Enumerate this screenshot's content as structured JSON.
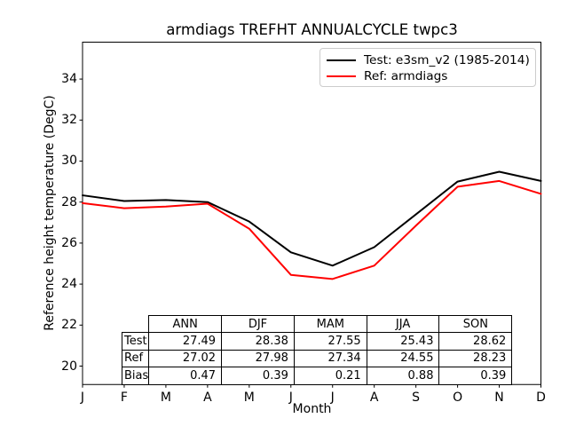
{
  "title": "armdiags TREFHT ANNUALCYCLE twpc3",
  "chart_data": {
    "type": "line",
    "title": "armdiags TREFHT ANNUALCYCLE twpc3",
    "xlabel": "Month",
    "ylabel": "Reference height temperature (DegC)",
    "x": [
      "J",
      "F",
      "M",
      "A",
      "M",
      "J",
      "J",
      "A",
      "S",
      "O",
      "N",
      "D"
    ],
    "series": [
      {
        "name": "Test: e3sm_v2 (1985-2014)",
        "color": "#000000",
        "values": [
          28.33,
          28.05,
          28.1,
          28.0,
          27.05,
          25.55,
          24.9,
          25.8,
          27.4,
          29.0,
          29.48,
          29.03
        ]
      },
      {
        "name": "Ref: armdiags",
        "color": "#ff0000",
        "values": [
          27.95,
          27.7,
          27.78,
          27.92,
          26.7,
          24.45,
          24.25,
          24.9,
          26.85,
          28.75,
          29.03,
          28.4
        ]
      }
    ],
    "yticks": [
      20,
      22,
      24,
      26,
      28,
      30,
      32,
      34
    ],
    "ylim": [
      19.1,
      35.8
    ],
    "grid": false,
    "legend_position": "upper right"
  },
  "table": {
    "col_headers": [
      "ANN",
      "DJF",
      "MAM",
      "JJA",
      "SON"
    ],
    "rows": [
      {
        "label": "Test",
        "values": [
          "27.49",
          "28.38",
          "27.55",
          "25.43",
          "28.62"
        ]
      },
      {
        "label": "Ref",
        "values": [
          "27.02",
          "27.98",
          "27.34",
          "24.55",
          "28.23"
        ]
      },
      {
        "label": "Bias",
        "values": [
          "0.47",
          "0.39",
          "0.21",
          "0.88",
          "0.39"
        ]
      }
    ]
  }
}
